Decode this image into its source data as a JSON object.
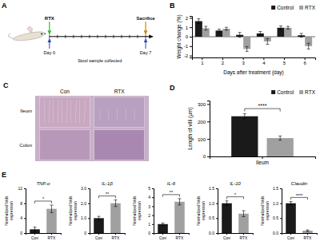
{
  "chart_data": [
    {
      "type": "diagram",
      "annotations": [
        "A",
        "RTX",
        "Sacrifice",
        "Day 0",
        "Day 7",
        "Stool sample collected"
      ]
    },
    {
      "type": "bar",
      "annotations": [
        "B"
      ],
      "xlabel": "Days after treatment (day)",
      "ylabel": "Weight change (%)",
      "categories": [
        "1",
        "2",
        "3",
        "4",
        "5",
        "6"
      ],
      "series": [
        {
          "name": "Control",
          "color": "#1a1a1a",
          "values": [
            1.65,
            0.65,
            0.2,
            0.35,
            0.95,
            0.15
          ],
          "errors": [
            0.25,
            0.15,
            0.25,
            0.2,
            0.2,
            0.2
          ]
        },
        {
          "name": "RTX",
          "color": "#a0a0a0",
          "values": [
            0.9,
            0.85,
            -1.3,
            -0.5,
            0.95,
            -1.0
          ],
          "errors": [
            0.2,
            0.15,
            0.25,
            0.3,
            0.15,
            0.3
          ]
        }
      ],
      "ylim": [
        -2.2,
        2.2
      ],
      "yticks": [
        -2,
        -1,
        0,
        1,
        2
      ],
      "legend": "upper right"
    },
    {
      "type": "image",
      "annotations": [
        "C",
        "Con",
        "RTX",
        "Ileum",
        "Colon"
      ]
    },
    {
      "type": "bar",
      "annotations": [
        "D",
        "****"
      ],
      "ylabel": "Length of villi (μm)",
      "categories": [
        "Ileum"
      ],
      "series": [
        {
          "name": "Control",
          "color": "#1a1a1a",
          "values": [
            230
          ],
          "errors": [
            15
          ]
        },
        {
          "name": "RTX",
          "color": "#a0a0a0",
          "values": [
            105
          ],
          "errors": [
            12
          ]
        }
      ],
      "ylim": [
        0,
        320
      ],
      "yticks": [
        0,
        100,
        200,
        300
      ],
      "legend": "upper right"
    },
    {
      "type": "bar",
      "title": "TNF-α",
      "annotations": [
        "E",
        "*"
      ],
      "ylabel": "Normalized folds\nexpression",
      "categories": [
        "Con",
        "RTX"
      ],
      "values": [
        1.0,
        6.5
      ],
      "errors": [
        0.6,
        1.0
      ],
      "colors": [
        "#1a1a1a",
        "#a0a0a0"
      ],
      "ylim": [
        0,
        12
      ],
      "yticks": [
        0,
        4,
        8,
        12
      ]
    },
    {
      "type": "bar",
      "title": "IL-1β",
      "annotations": [
        "**"
      ],
      "ylabel": "Normalized folds\nexpression",
      "categories": [
        "Con",
        "RTX"
      ],
      "values": [
        1.0,
        2.0
      ],
      "errors": [
        0.12,
        0.22
      ],
      "colors": [
        "#1a1a1a",
        "#a0a0a0"
      ],
      "ylim": [
        0,
        3.0
      ],
      "yticks": [
        0,
        {
          "value": 1.0,
          "label": "1.0"
        },
        {
          "value": 2.0,
          "label": "2.0"
        },
        {
          "value": 3.0,
          "label": "3.0"
        }
      ]
    },
    {
      "type": "bar",
      "title": "IL-6",
      "annotations": [
        "**"
      ],
      "ylabel": "Normalized folds\nexpression",
      "categories": [
        "Con",
        "RTX"
      ],
      "values": [
        1.0,
        3.5
      ],
      "errors": [
        0.12,
        0.35
      ],
      "colors": [
        "#1a1a1a",
        "#a0a0a0"
      ],
      "ylim": [
        0,
        5
      ],
      "yticks": [
        0,
        1,
        2,
        3,
        4,
        5
      ]
    },
    {
      "type": "bar",
      "title": "IL-10",
      "annotations": [
        "*"
      ],
      "ylabel": "Normalized folds\nexpression",
      "categories": [
        "Con",
        "RTX"
      ],
      "values": [
        1.0,
        0.65
      ],
      "errors": [
        0.08,
        0.1
      ],
      "colors": [
        "#1a1a1a",
        "#a0a0a0"
      ],
      "ylim": [
        0,
        1.5
      ],
      "yticks": [
        {
          "value": 0.0,
          "label": "0.0"
        },
        0.5,
        {
          "value": 1.0,
          "label": "1.0"
        },
        1.5
      ]
    },
    {
      "type": "bar",
      "title": "Claudin",
      "annotations": [
        "****"
      ],
      "ylabel": "Normalized folds\nexpression",
      "categories": [
        "Con",
        "RTX"
      ],
      "values": [
        1.0,
        0.08
      ],
      "errors": [
        0.06,
        0.025
      ],
      "colors": [
        "#1a1a1a",
        "#a0a0a0"
      ],
      "ylim": [
        0,
        1.5
      ],
      "yticks": [
        {
          "value": 0.0,
          "label": "0.0"
        },
        0.5,
        {
          "value": 1.0,
          "label": "1.0"
        },
        1.5
      ]
    }
  ]
}
